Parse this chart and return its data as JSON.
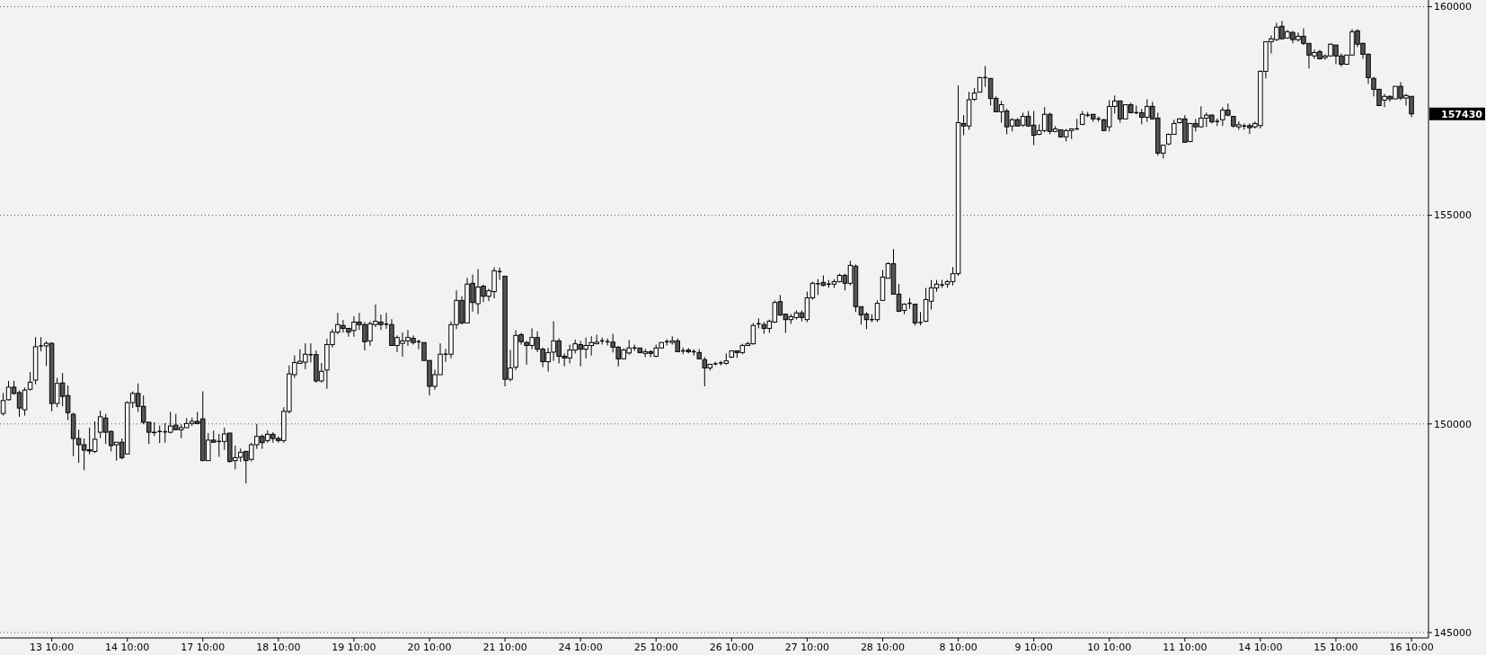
{
  "chart_data": {
    "type": "candlestick",
    "categories": [
      null,
      null,
      null,
      null,
      null,
      null,
      null,
      null,
      null,
      "13 10:00",
      null,
      null,
      null,
      null,
      null,
      null,
      null,
      null,
      null,
      null,
      null,
      null,
      null,
      "14 10:00",
      null,
      null,
      null,
      null,
      null,
      null,
      null,
      null,
      null,
      null,
      null,
      null,
      null,
      "17 10:00",
      null,
      null,
      null,
      null,
      null,
      null,
      null,
      null,
      null,
      null,
      null,
      null,
      null,
      "18 10:00",
      null,
      null,
      null,
      null,
      null,
      null,
      null,
      null,
      null,
      null,
      null,
      null,
      null,
      "19 10:00",
      null,
      null,
      null,
      null,
      null,
      null,
      null,
      null,
      null,
      null,
      null,
      null,
      null,
      "20 10:00",
      null,
      null,
      null,
      null,
      null,
      null,
      null,
      null,
      null,
      null,
      null,
      null,
      null,
      "21 10:00",
      null,
      null,
      null,
      null,
      null,
      null,
      null,
      null,
      null,
      null,
      null,
      null,
      null,
      "24 10:00",
      null,
      null,
      null,
      null,
      null,
      null,
      null,
      null,
      null,
      null,
      null,
      null,
      null,
      "25 10:00",
      null,
      null,
      null,
      null,
      null,
      null,
      null,
      null,
      null,
      null,
      null,
      null,
      null,
      "26 10:00",
      null,
      null,
      null,
      null,
      null,
      null,
      null,
      null,
      null,
      null,
      null,
      null,
      null,
      "27 10:00",
      null,
      null,
      null,
      null,
      null,
      null,
      null,
      null,
      null,
      null,
      null,
      null,
      null,
      "28 10:00",
      null,
      null,
      null,
      null,
      null,
      null,
      null,
      null,
      null,
      null,
      null,
      null,
      null,
      "8 10:00",
      null,
      null,
      null,
      null,
      null,
      null,
      null,
      null,
      null,
      null,
      null,
      null,
      null,
      "9 10:00",
      null,
      null,
      null,
      null,
      null,
      null,
      null,
      null,
      null,
      null,
      null,
      null,
      null,
      "10 10:00",
      null,
      null,
      null,
      null,
      null,
      null,
      null,
      null,
      null,
      null,
      null,
      null,
      null,
      "11 10:00",
      null,
      null,
      null,
      null,
      null,
      null,
      null,
      null,
      null,
      null,
      null,
      null,
      null,
      "14 10:00",
      null,
      null,
      null,
      null,
      null,
      null,
      null,
      null,
      null,
      null,
      null,
      null,
      null,
      "15 10:00",
      null,
      null,
      null,
      null,
      null,
      null,
      null,
      null,
      null,
      null,
      null,
      null,
      null,
      "16 10:00"
    ],
    "ohlc": [
      [
        150250,
        150740,
        150200,
        150560
      ],
      [
        150580,
        151030,
        150560,
        150880
      ],
      [
        150880,
        151030,
        150700,
        150730
      ],
      [
        150750,
        150800,
        150170,
        150380
      ],
      [
        150340,
        150870,
        150200,
        150810
      ],
      [
        150830,
        151240,
        150800,
        151000
      ],
      [
        151050,
        152080,
        150950,
        151850
      ],
      [
        151870,
        152080,
        151740,
        151870
      ],
      [
        151870,
        151980,
        151390,
        151930
      ],
      [
        151930,
        151960,
        150300,
        150490
      ],
      [
        150490,
        151100,
        150400,
        150970
      ],
      [
        150980,
        151220,
        150420,
        150660
      ],
      [
        150680,
        150920,
        150090,
        150270
      ],
      [
        150230,
        150270,
        149230,
        149650
      ],
      [
        149650,
        149860,
        149070,
        149500
      ],
      [
        149500,
        149650,
        148890,
        149370
      ],
      [
        149380,
        149910,
        149270,
        149350
      ],
      [
        149340,
        150060,
        149300,
        149630
      ],
      [
        149800,
        150320,
        149660,
        150170
      ],
      [
        150140,
        150240,
        149520,
        149800
      ],
      [
        149820,
        149840,
        149340,
        149480
      ],
      [
        149500,
        149560,
        149120,
        149560
      ],
      [
        149560,
        149650,
        149150,
        149190
      ],
      [
        149280,
        150540,
        149270,
        150510
      ],
      [
        150510,
        150780,
        150380,
        150730
      ],
      [
        150730,
        150970,
        150290,
        150420
      ],
      [
        150420,
        150680,
        149990,
        150040
      ],
      [
        150040,
        150040,
        149520,
        149800
      ],
      [
        149800,
        150040,
        149710,
        149790
      ],
      [
        149820,
        149960,
        149540,
        149820
      ],
      [
        149810,
        150020,
        149550,
        149810
      ],
      [
        149800,
        150290,
        149770,
        149950
      ],
      [
        149970,
        150240,
        149860,
        149860
      ],
      [
        149860,
        149990,
        149660,
        149910
      ],
      [
        149910,
        150140,
        149910,
        150010
      ],
      [
        150010,
        150150,
        149950,
        150060
      ],
      [
        150060,
        150290,
        149990,
        150010
      ],
      [
        150120,
        150780,
        149120,
        149120
      ],
      [
        149120,
        149780,
        149120,
        149610
      ],
      [
        149610,
        149840,
        149550,
        149560
      ],
      [
        149580,
        149760,
        149210,
        149580
      ],
      [
        149580,
        149910,
        149380,
        149760
      ],
      [
        149780,
        149780,
        149070,
        149100
      ],
      [
        149120,
        149480,
        148910,
        149190
      ],
      [
        149200,
        149410,
        149090,
        149320
      ],
      [
        149340,
        149360,
        148570,
        149120
      ],
      [
        149150,
        149550,
        149100,
        149500
      ],
      [
        149500,
        150000,
        149400,
        149700
      ],
      [
        149700,
        149750,
        149400,
        149550
      ],
      [
        149600,
        149850,
        149550,
        149750
      ],
      [
        149750,
        149800,
        149550,
        149650
      ],
      [
        149650,
        149700,
        149550,
        149600
      ],
      [
        149600,
        150400,
        149550,
        150300
      ],
      [
        150300,
        151400,
        150250,
        151200
      ],
      [
        151180,
        151640,
        151100,
        151470
      ],
      [
        151450,
        151790,
        151450,
        151500
      ],
      [
        151480,
        151930,
        151310,
        151670
      ],
      [
        151660,
        151930,
        151470,
        151660
      ],
      [
        151660,
        151760,
        150990,
        151030
      ],
      [
        151030,
        151460,
        150990,
        151260
      ],
      [
        151290,
        152040,
        150840,
        151900
      ],
      [
        151900,
        152270,
        151830,
        152200
      ],
      [
        152200,
        152660,
        152150,
        152380
      ],
      [
        152360,
        152490,
        152190,
        152290
      ],
      [
        152290,
        152290,
        152090,
        152200
      ],
      [
        152240,
        152580,
        152090,
        152440
      ],
      [
        152440,
        152660,
        152250,
        152380
      ],
      [
        152380,
        152440,
        151760,
        151970
      ],
      [
        151990,
        152460,
        151870,
        152400
      ],
      [
        152380,
        152860,
        152320,
        152460
      ],
      [
        152440,
        152620,
        152250,
        152380
      ],
      [
        152390,
        152660,
        152280,
        152390
      ],
      [
        152380,
        152510,
        151880,
        151880
      ],
      [
        151880,
        152120,
        151720,
        152070
      ],
      [
        151930,
        152190,
        151610,
        151990
      ],
      [
        151990,
        152250,
        151870,
        152070
      ],
      [
        152050,
        152120,
        151900,
        151950
      ],
      [
        151970,
        152020,
        151790,
        151970
      ],
      [
        151950,
        151950,
        151520,
        151520
      ],
      [
        151520,
        151520,
        150680,
        150900
      ],
      [
        150900,
        151300,
        150820,
        151180
      ],
      [
        151180,
        151930,
        151180,
        151670
      ],
      [
        151670,
        151800,
        151490,
        151670
      ],
      [
        151670,
        152460,
        151570,
        152380
      ],
      [
        152380,
        153200,
        152270,
        152960
      ],
      [
        152960,
        153060,
        152380,
        152420
      ],
      [
        152420,
        153500,
        152420,
        153350
      ],
      [
        153370,
        153580,
        152690,
        152910
      ],
      [
        152880,
        153710,
        152630,
        153280
      ],
      [
        153300,
        153340,
        152920,
        153060
      ],
      [
        153060,
        153240,
        152940,
        153190
      ],
      [
        153170,
        153750,
        153010,
        153670
      ],
      [
        153650,
        153750,
        153450,
        153650
      ],
      [
        153540,
        153540,
        150900,
        151070
      ],
      [
        151070,
        151770,
        151020,
        151340
      ],
      [
        151360,
        152250,
        151290,
        152120
      ],
      [
        152140,
        152180,
        151900,
        151970
      ],
      [
        151950,
        151990,
        151420,
        151880
      ],
      [
        151880,
        152290,
        151790,
        152070
      ],
      [
        152070,
        152220,
        151720,
        151790
      ],
      [
        151790,
        151830,
        151360,
        151490
      ],
      [
        151490,
        151820,
        151250,
        151710
      ],
      [
        151720,
        152460,
        151510,
        151990
      ],
      [
        151990,
        152050,
        151450,
        151620
      ],
      [
        151620,
        151690,
        151380,
        151580
      ],
      [
        151580,
        151900,
        151450,
        151770
      ],
      [
        151770,
        152020,
        151690,
        151920
      ],
      [
        151900,
        151990,
        151380,
        151790
      ],
      [
        151790,
        152070,
        151570,
        151880
      ],
      [
        151880,
        152100,
        151640,
        151950
      ],
      [
        151920,
        152140,
        151920,
        151960
      ],
      [
        151990,
        152070,
        151900,
        151990
      ],
      [
        151970,
        152050,
        151880,
        151970
      ],
      [
        151960,
        152160,
        151710,
        151840
      ],
      [
        151840,
        151860,
        151380,
        151560
      ],
      [
        151560,
        151810,
        151560,
        151770
      ],
      [
        151700,
        152010,
        151660,
        151820
      ],
      [
        151820,
        151900,
        151750,
        151820
      ],
      [
        151820,
        151820,
        151690,
        151710
      ],
      [
        151690,
        151800,
        151600,
        151730
      ],
      [
        151730,
        151770,
        151600,
        151690
      ],
      [
        151620,
        151900,
        151600,
        151820
      ],
      [
        151820,
        151950,
        151820,
        151950
      ],
      [
        151970,
        152030,
        151880,
        151970
      ],
      [
        151950,
        152100,
        151900,
        151990
      ],
      [
        151990,
        152050,
        151730,
        151730
      ],
      [
        151750,
        151830,
        151670,
        151750
      ],
      [
        151770,
        151820,
        151690,
        151730
      ],
      [
        151730,
        151790,
        151640,
        151730
      ],
      [
        151710,
        151790,
        151560,
        151560
      ],
      [
        151540,
        151600,
        150900,
        151340
      ],
      [
        151340,
        151430,
        151280,
        151430
      ],
      [
        151440,
        151490,
        151400,
        151440
      ],
      [
        151460,
        151510,
        151400,
        151460
      ],
      [
        151450,
        151690,
        151420,
        151510
      ],
      [
        151600,
        151750,
        151580,
        151750
      ],
      [
        151750,
        151750,
        151580,
        151710
      ],
      [
        151710,
        151920,
        151670,
        151880
      ],
      [
        151880,
        151970,
        151880,
        151920
      ],
      [
        151920,
        152420,
        151900,
        152360
      ],
      [
        152400,
        152530,
        152290,
        152400
      ],
      [
        152380,
        152440,
        152160,
        152290
      ],
      [
        152290,
        152500,
        152180,
        152460
      ],
      [
        152440,
        152960,
        152420,
        152910
      ],
      [
        152930,
        153090,
        152590,
        152610
      ],
      [
        152630,
        152630,
        152180,
        152500
      ],
      [
        152500,
        152630,
        152400,
        152570
      ],
      [
        152550,
        152720,
        152500,
        152660
      ],
      [
        152660,
        152720,
        152460,
        152550
      ],
      [
        152500,
        153170,
        152440,
        153020
      ],
      [
        153020,
        153410,
        152980,
        153370
      ],
      [
        153360,
        153470,
        153090,
        153360
      ],
      [
        153390,
        153560,
        153300,
        153320
      ],
      [
        153350,
        153450,
        153260,
        153350
      ],
      [
        153350,
        153470,
        153260,
        153410
      ],
      [
        153410,
        153600,
        153390,
        153560
      ],
      [
        153560,
        153600,
        153200,
        153370
      ],
      [
        153370,
        153910,
        153320,
        153800
      ],
      [
        153780,
        153820,
        152680,
        152810
      ],
      [
        152810,
        152810,
        152380,
        152610
      ],
      [
        152630,
        152680,
        152270,
        152500
      ],
      [
        152500,
        152630,
        152440,
        152500
      ],
      [
        152500,
        152960,
        152440,
        152890
      ],
      [
        152960,
        153690,
        152960,
        153520
      ],
      [
        153490,
        153880,
        153490,
        153840
      ],
      [
        153840,
        154190,
        153110,
        153110
      ],
      [
        153110,
        153350,
        152680,
        152700
      ],
      [
        152720,
        152890,
        152630,
        152870
      ],
      [
        152890,
        153020,
        152760,
        152890
      ],
      [
        152870,
        152870,
        152360,
        152420
      ],
      [
        152430,
        152680,
        152360,
        152430
      ],
      [
        152460,
        153260,
        152440,
        152980
      ],
      [
        152940,
        153450,
        152740,
        153260
      ],
      [
        153260,
        153450,
        153170,
        153350
      ],
      [
        153330,
        153450,
        153260,
        153330
      ],
      [
        153350,
        153450,
        153260,
        153410
      ],
      [
        153410,
        153760,
        153320,
        153600
      ],
      [
        153600,
        158110,
        153550,
        157220
      ],
      [
        157200,
        157400,
        156920,
        157140
      ],
      [
        157140,
        157960,
        157050,
        157770
      ],
      [
        157780,
        158050,
        157740,
        157930
      ],
      [
        157950,
        158320,
        157950,
        158300
      ],
      [
        158300,
        158580,
        158080,
        158300
      ],
      [
        158280,
        158280,
        157630,
        157800
      ],
      [
        157800,
        157850,
        157480,
        157480
      ],
      [
        157480,
        157740,
        157220,
        157650
      ],
      [
        157500,
        157550,
        156940,
        157120
      ],
      [
        157140,
        157330,
        157010,
        157290
      ],
      [
        157290,
        157330,
        157140,
        157140
      ],
      [
        157160,
        157460,
        157120,
        157370
      ],
      [
        157370,
        157500,
        157120,
        157140
      ],
      [
        157160,
        157500,
        156680,
        156920
      ],
      [
        156940,
        157180,
        156920,
        157030
      ],
      [
        157030,
        157590,
        156990,
        157420
      ],
      [
        157420,
        157460,
        156940,
        157010
      ],
      [
        157010,
        157140,
        156990,
        157070
      ],
      [
        157050,
        157050,
        156860,
        156880
      ],
      [
        156880,
        157070,
        156770,
        157030
      ],
      [
        157030,
        157070,
        156830,
        157070
      ],
      [
        157070,
        157310,
        157050,
        157070
      ],
      [
        157180,
        157500,
        157160,
        157420
      ],
      [
        157400,
        157480,
        157350,
        157400
      ],
      [
        157420,
        157420,
        157240,
        157310
      ],
      [
        157310,
        157370,
        157240,
        157310
      ],
      [
        157290,
        157310,
        157030,
        157030
      ],
      [
        157120,
        157760,
        157010,
        157610
      ],
      [
        157610,
        157870,
        157440,
        157740
      ],
      [
        157740,
        157740,
        157220,
        157310
      ],
      [
        157310,
        157650,
        157310,
        157650
      ],
      [
        157650,
        157700,
        157440,
        157460
      ],
      [
        157460,
        157630,
        157420,
        157460
      ],
      [
        157460,
        157550,
        157180,
        157350
      ],
      [
        157350,
        157780,
        157240,
        157610
      ],
      [
        157610,
        157720,
        157310,
        157310
      ],
      [
        157330,
        157460,
        156430,
        156490
      ],
      [
        156490,
        156680,
        156360,
        156680
      ],
      [
        156710,
        156960,
        156680,
        156940
      ],
      [
        156940,
        157290,
        156940,
        157200
      ],
      [
        157220,
        157330,
        157200,
        157310
      ],
      [
        157310,
        157400,
        156750,
        156750
      ],
      [
        156770,
        157200,
        156750,
        157200
      ],
      [
        157200,
        157310,
        157010,
        157120
      ],
      [
        157120,
        157610,
        157100,
        157330
      ],
      [
        157330,
        157460,
        157120,
        157400
      ],
      [
        157400,
        157420,
        157200,
        157240
      ],
      [
        157250,
        157320,
        157140,
        157250
      ],
      [
        157290,
        157590,
        157140,
        157520
      ],
      [
        157520,
        157680,
        157370,
        157400
      ],
      [
        157370,
        157370,
        157100,
        157140
      ],
      [
        157120,
        157250,
        157050,
        157170
      ],
      [
        157140,
        157200,
        157050,
        157140
      ],
      [
        157150,
        157200,
        156950,
        157100
      ],
      [
        157120,
        157250,
        157080,
        157200
      ],
      [
        157150,
        158470,
        157080,
        158450
      ],
      [
        158450,
        159160,
        158280,
        159160
      ],
      [
        159160,
        159310,
        158880,
        159230
      ],
      [
        159210,
        159610,
        159180,
        159510
      ],
      [
        159530,
        159660,
        159230,
        159230
      ],
      [
        159250,
        159440,
        159230,
        159400
      ],
      [
        159380,
        159420,
        159120,
        159210
      ],
      [
        159210,
        159380,
        159160,
        159290
      ],
      [
        159290,
        159480,
        159080,
        159120
      ],
      [
        159120,
        159120,
        158520,
        158840
      ],
      [
        158820,
        158970,
        158750,
        158900
      ],
      [
        158920,
        158970,
        158750,
        158750
      ],
      [
        158780,
        158860,
        158730,
        158820
      ],
      [
        158820,
        159120,
        158800,
        159100
      ],
      [
        159080,
        159080,
        158620,
        158820
      ],
      [
        158820,
        158880,
        158560,
        158620
      ],
      [
        158620,
        158840,
        158620,
        158840
      ],
      [
        158840,
        159460,
        158840,
        159400
      ],
      [
        159420,
        159460,
        159030,
        159100
      ],
      [
        159120,
        159140,
        158750,
        158860
      ],
      [
        158860,
        158880,
        158150,
        158300
      ],
      [
        158280,
        158320,
        157850,
        158020
      ],
      [
        158020,
        158020,
        157630,
        157630
      ],
      [
        157760,
        157910,
        157590,
        157850
      ],
      [
        157850,
        157870,
        157720,
        157790
      ],
      [
        157790,
        158090,
        157790,
        158090
      ],
      [
        158090,
        158190,
        157760,
        157810
      ],
      [
        157810,
        157910,
        157630,
        157870
      ],
      [
        157850,
        157850,
        157350,
        157430
      ]
    ],
    "ylim": [
      144870,
      160160
    ],
    "yticks": [
      145000,
      150000,
      155000,
      160000
    ],
    "grid": "y",
    "annotations": [
      "157430"
    ]
  }
}
